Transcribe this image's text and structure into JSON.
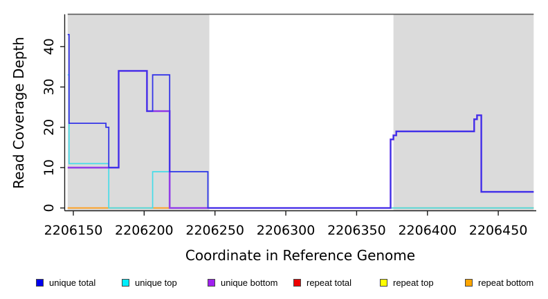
{
  "figure": {
    "background": "#FFFFFF",
    "panel_shade_color": "#DBDBDB",
    "top_border_color": "#5A5A5A",
    "axis_color": "#1A1A1A",
    "tick_label_color": "#000000"
  },
  "chart_data": {
    "type": "line",
    "subtype": "step-coverage",
    "title": "",
    "xlabel": "Coordinate in Reference Genome",
    "ylabel": "Read Coverage Depth",
    "xlim": [
      2206146,
      2206475
    ],
    "ylim": [
      0,
      48
    ],
    "x_ticks": [
      "2206150",
      "2206200",
      "2206250",
      "2206300",
      "2206350",
      "2206400",
      "2206450"
    ],
    "x_tick_values": [
      2206150,
      2206200,
      2206250,
      2206300,
      2206350,
      2206400,
      2206450
    ],
    "y_ticks": [
      "0",
      "10",
      "20",
      "30",
      "40"
    ],
    "y_tick_values": [
      0,
      10,
      20,
      30,
      40
    ],
    "grid": false,
    "legend_position": "bottom",
    "shaded_regions": [
      {
        "x0": 2206146,
        "x1": 2206246
      },
      {
        "x0": 2206376,
        "x1": 2206475
      }
    ],
    "series": [
      {
        "name": "unique total",
        "color": "#3434E8",
        "points": [
          [
            2206146,
            43
          ],
          [
            2206147,
            21
          ],
          [
            2206173,
            20
          ],
          [
            2206175,
            10
          ],
          [
            2206182,
            34
          ],
          [
            2206202,
            24
          ],
          [
            2206206,
            33
          ],
          [
            2206218,
            9
          ],
          [
            2206245,
            0
          ],
          [
            2206374,
            17
          ],
          [
            2206376,
            18
          ],
          [
            2206378,
            19
          ],
          [
            2206433,
            22
          ],
          [
            2206435,
            23
          ],
          [
            2206438,
            4
          ],
          [
            2206475,
            4
          ]
        ]
      },
      {
        "name": "unique top",
        "color": "#45DCE8",
        "points": [
          [
            2206146,
            33
          ],
          [
            2206147,
            11
          ],
          [
            2206175,
            0
          ],
          [
            2206206,
            9
          ],
          [
            2206245,
            0
          ],
          [
            2206475,
            0
          ]
        ]
      },
      {
        "name": "unique bottom",
        "color": "#9340E8",
        "points": [
          [
            2206146,
            10
          ],
          [
            2206182,
            34
          ],
          [
            2206202,
            24
          ],
          [
            2206218,
            0
          ],
          [
            2206374,
            17
          ],
          [
            2206376,
            18
          ],
          [
            2206378,
            19
          ],
          [
            2206433,
            22
          ],
          [
            2206435,
            23
          ],
          [
            2206438,
            4
          ],
          [
            2206475,
            4
          ]
        ]
      },
      {
        "name": "repeat total",
        "color": "#E04060",
        "points": [
          [
            2206146,
            0
          ],
          [
            2206475,
            0
          ]
        ]
      },
      {
        "name": "repeat top",
        "color": "#E8E82A",
        "points": [
          [
            2206146,
            0
          ],
          [
            2206475,
            0
          ]
        ]
      },
      {
        "name": "repeat bottom",
        "color": "#FF9D1E",
        "points": [
          [
            2206146,
            0
          ],
          [
            2206475,
            0
          ]
        ]
      }
    ]
  },
  "legend": {
    "items": [
      {
        "label": "unique total",
        "color": "#0000EE"
      },
      {
        "label": "unique top",
        "color": "#00EEFF"
      },
      {
        "label": "unique bottom",
        "color": "#A020F0"
      },
      {
        "label": "repeat total",
        "color": "#EE0000"
      },
      {
        "label": "repeat top",
        "color": "#FFFF00"
      },
      {
        "label": "repeat bottom",
        "color": "#FFA500"
      }
    ]
  }
}
